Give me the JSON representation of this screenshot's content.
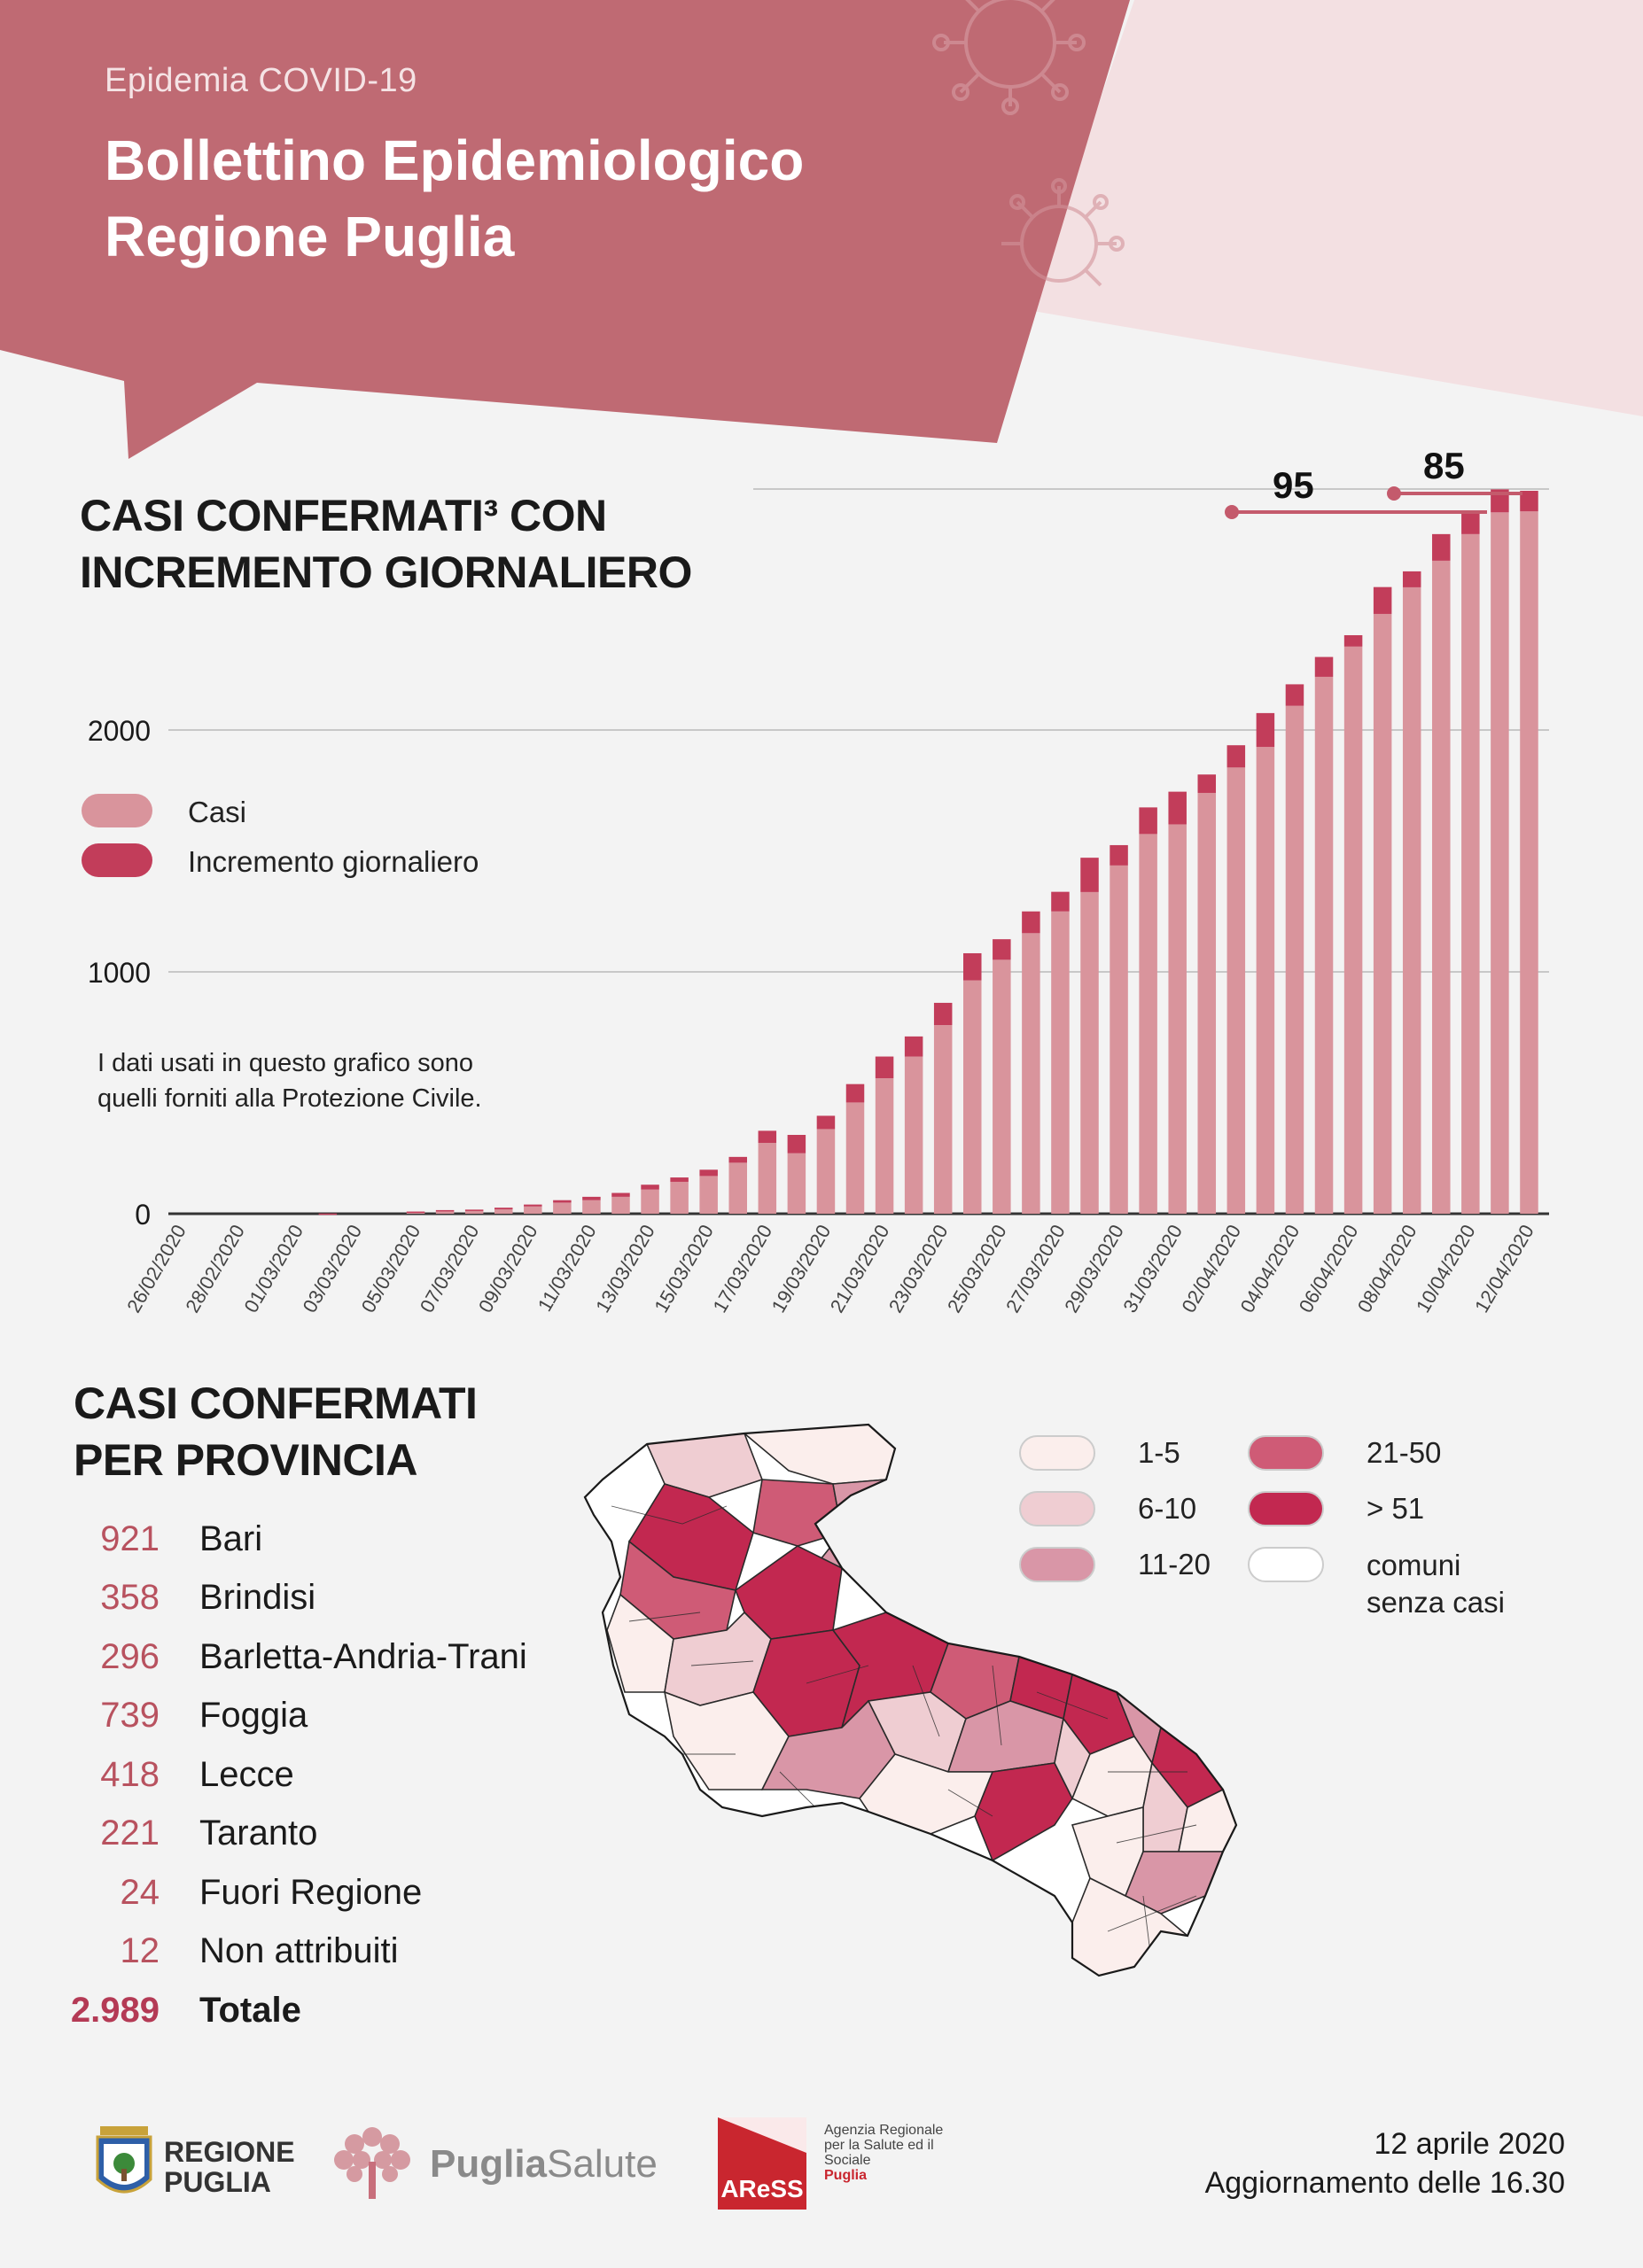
{
  "header": {
    "subtitle": "Epidemia COVID-19",
    "title_line1": "Bollettino Epidemiologico",
    "title_line2": "Regione Puglia"
  },
  "chart_section": {
    "title_line1": "CASI CONFERMATI³ CON",
    "title_line2": "INCREMENTO GIORNALIERO",
    "note": "I dati usati in questo grafico sono quelli forniti alla Protezione Civile."
  },
  "chart_data": {
    "type": "bar",
    "stacked": true,
    "ylim": [
      0,
      3000
    ],
    "yticks": [
      0,
      1000,
      2000
    ],
    "grid": true,
    "legend_placement": "left",
    "categories": [
      "26/02/2020",
      "27/02/2020",
      "28/02/2020",
      "29/02/2020",
      "01/03/2020",
      "02/03/2020",
      "03/03/2020",
      "04/03/2020",
      "05/03/2020",
      "06/03/2020",
      "07/03/2020",
      "08/03/2020",
      "09/03/2020",
      "10/03/2020",
      "11/03/2020",
      "12/03/2020",
      "13/03/2020",
      "14/03/2020",
      "15/03/2020",
      "16/03/2020",
      "17/03/2020",
      "18/03/2020",
      "19/03/2020",
      "20/03/2020",
      "21/03/2020",
      "22/03/2020",
      "23/03/2020",
      "24/03/2020",
      "25/03/2020",
      "26/03/2020",
      "27/03/2020",
      "28/03/2020",
      "29/03/2020",
      "30/03/2020",
      "31/03/2020",
      "01/04/2020",
      "02/04/2020",
      "03/04/2020",
      "04/04/2020",
      "05/04/2020",
      "06/04/2020",
      "07/04/2020",
      "08/04/2020",
      "09/04/2020",
      "10/04/2020",
      "11/04/2020",
      "12/04/2020"
    ],
    "tick_labels": [
      "26/02/2020",
      "28/02/2020",
      "01/03/2020",
      "03/03/2020",
      "05/03/2020",
      "07/03/2020",
      "09/03/2020",
      "11/03/2020",
      "13/03/2020",
      "15/03/2020",
      "17/03/2020",
      "19/03/2020",
      "21/03/2020",
      "23/03/2020",
      "25/03/2020",
      "27/03/2020",
      "29/03/2020",
      "31/03/2020",
      "02/04/2020",
      "04/04/2020",
      "06/04/2020",
      "08/04/2020",
      "10/04/2020",
      "12/04/2020"
    ],
    "series": [
      {
        "name": "Casi",
        "color": "#d9949c",
        "values": [
          0,
          0,
          0,
          0,
          0,
          0,
          0,
          0,
          7,
          12,
          13,
          18,
          30,
          46,
          56,
          70,
          100,
          132,
          156,
          211,
          293,
          250,
          350,
          460,
          560,
          650,
          780,
          965,
          1050,
          1160,
          1250,
          1330,
          1440,
          1570,
          1610,
          1740,
          1845,
          1930,
          2100,
          2220,
          2345,
          2480,
          2590,
          2700,
          2810,
          2900,
          2904
        ]
      },
      {
        "name": "Incremento giornaliero",
        "color": "#c23d5a",
        "values": [
          0,
          0,
          0,
          0,
          0,
          1,
          0,
          0,
          2,
          3,
          4,
          7,
          8,
          10,
          14,
          16,
          20,
          18,
          26,
          24,
          50,
          76,
          55,
          76,
          90,
          83,
          92,
          112,
          85,
          90,
          81,
          142,
          84,
          110,
          135,
          76,
          92,
          140,
          89,
          82,
          47,
          111,
          66,
          110,
          89,
          95,
          85
        ]
      }
    ],
    "annotations": [
      {
        "text": "95",
        "date": "11/04/2020"
      },
      {
        "text": "85",
        "date": "12/04/2020"
      }
    ]
  },
  "legend": {
    "casi": "Casi",
    "incremento": "Incremento giornaliero"
  },
  "province_section": {
    "title_line1": "CASI CONFERMATI",
    "title_line2": "PER PROVINCIA",
    "rows": [
      {
        "value": "921",
        "name": "Bari"
      },
      {
        "value": "358",
        "name": "Brindisi"
      },
      {
        "value": "296",
        "name": "Barletta-Andria-Trani"
      },
      {
        "value": "739",
        "name": "Foggia"
      },
      {
        "value": "418",
        "name": "Lecce"
      },
      {
        "value": "221",
        "name": "Taranto"
      },
      {
        "value": "24",
        "name": "Fuori Regione"
      },
      {
        "value": "12",
        "name": "Non attribuiti"
      }
    ],
    "total": {
      "value": "2.989",
      "name": "Totale"
    }
  },
  "map_legend": [
    {
      "label": "1-5",
      "color": "#fbeeec"
    },
    {
      "label": "21-50",
      "color": "#cf5b76"
    },
    {
      "label": "6-10",
      "color": "#efcdd2"
    },
    {
      "label": "> 51",
      "color": "#c22850"
    },
    {
      "label": "11-20",
      "color": "#d996a7"
    },
    {
      "label": "comuni senza casi",
      "color": "#ffffff"
    }
  ],
  "footer": {
    "date": "12 aprile 2020",
    "update": "Aggiornamento delle 16.30",
    "logo_regione_1": "REGIONE",
    "logo_regione_2": "PUGLIA",
    "logo_puglia_1": "Puglia",
    "logo_puglia_2": "Salute",
    "logo_aress": "AReSS",
    "logo_aress_desc": "Agenzia Regionale per la Salute ed il Sociale",
    "logo_aress_region": "Puglia"
  }
}
